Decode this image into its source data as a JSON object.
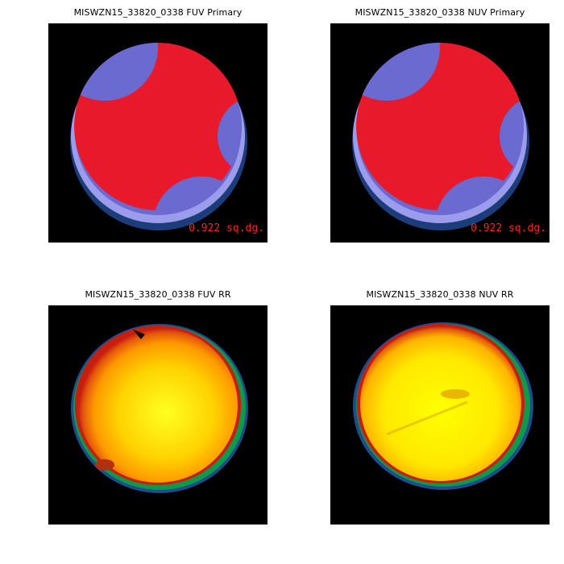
{
  "panels": [
    {
      "title": "MISWZN15_33820_0338 FUV Primary",
      "kind": "primary",
      "area_label": "0.922 sq.dg."
    },
    {
      "title": "MISWZN15_33820_0338 NUV Primary",
      "kind": "primary",
      "area_label": "0.922 sq.dg."
    },
    {
      "title": "MISWZN15_33820_0338 FUV RR",
      "kind": "rr"
    },
    {
      "title": "MISWZN15_33820_0338 NUV RR",
      "kind": "rr"
    }
  ],
  "colors": {
    "background": "#000000",
    "primary_fill": "#e8192b",
    "overlap_fill": "#6a6ad0",
    "edge_light": "#9c9cec",
    "ring_dark_blue": "#1c3d7a",
    "area_text": "#ff2020",
    "rr_center": "#ffff00",
    "rr_mid": "#ffb000",
    "rr_rim": "#c81e10",
    "rr_outer_green": "#0f9a4a",
    "rr_outer_blue": "#1f4c8c"
  }
}
